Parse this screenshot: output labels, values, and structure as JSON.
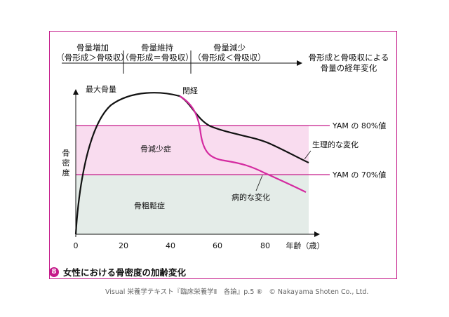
{
  "phases": [
    {
      "title": "骨量増加",
      "sub": "（骨形成＞骨吸収）"
    },
    {
      "title": "骨量維持",
      "sub": "（骨形成＝骨吸収）"
    },
    {
      "title": "骨量減少",
      "sub": "（骨形成＜骨吸収）"
    }
  ],
  "timeline_label_1": "骨形成と骨吸収による",
  "timeline_label_2": "骨量の経年変化",
  "y_label": "骨密度",
  "x_label": "年齢（歳）",
  "x_ticks": [
    "0",
    "20",
    "40",
    "60",
    "80"
  ],
  "peak_label": "最大骨量",
  "menopause_label": "閉経",
  "yam80_label": "YAM の 80%値",
  "yam70_label": "YAM の 70%値",
  "physio_label": "生理的な変化",
  "patho_label": "病的な変化",
  "zone_osteopenia": "骨減少症",
  "zone_osteoporosis": "骨粗鬆症",
  "caption_badge": "8",
  "caption": "女性における骨密度の加齢変化",
  "credit": "Visual 栄養学テキスト『臨床栄養学Ⅱ　各論』p.5 ⑧　© Nakayama Shoten Co., Ltd.",
  "colors": {
    "frame": "#c51b8a",
    "pink_zone": "#f9dcef",
    "grey_zone": "#e4ece8",
    "patho_line": "#d42aa0",
    "yam_line": "#c51b8a"
  }
}
